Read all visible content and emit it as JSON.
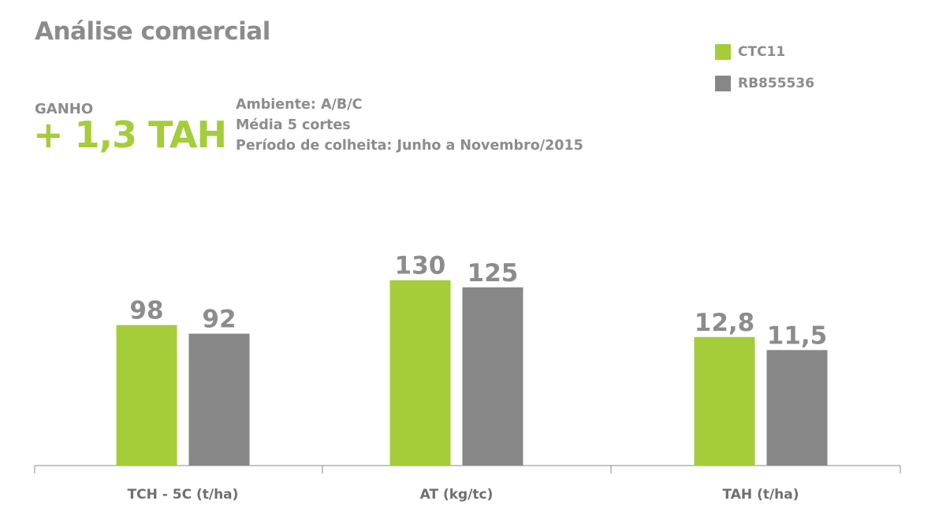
{
  "header": {
    "title": "Análise comercial",
    "gain_label": "GANHO",
    "gain_value": "+ 1,3 TAH",
    "notes": [
      "Ambiente: A/B/C",
      "Média 5 cortes",
      "Período de colheita: Junho a Novembro/2015"
    ]
  },
  "colors": {
    "ctc11": "#a4cd39",
    "rb855536": "#878787",
    "axis": "#8a8a8a",
    "label": "#8c8c8c"
  },
  "legend": [
    {
      "name": "CTC11",
      "color": "#a4cd39"
    },
    {
      "name": "RB855536",
      "color": "#878787"
    }
  ],
  "chart_data": {
    "type": "bar",
    "title": "Análise comercial",
    "categories": [
      "TCH - 5C (t/ha)",
      "AT (kg/tc)",
      "TAH (t/ha)"
    ],
    "series": [
      {
        "name": "CTC11",
        "values": [
          98,
          130,
          12.8
        ],
        "labels": [
          "98",
          "130",
          "12,8"
        ]
      },
      {
        "name": "RB855536",
        "values": [
          92,
          125,
          11.5
        ],
        "labels": [
          "92",
          "125",
          "11,5"
        ]
      }
    ],
    "legend_position": "top-right",
    "grid": false
  }
}
